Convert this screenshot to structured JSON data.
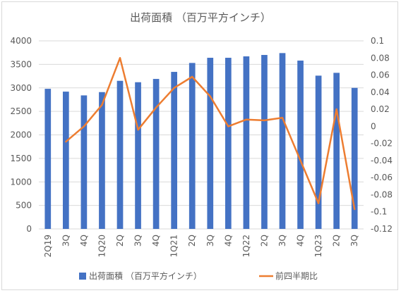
{
  "chart_data": {
    "type": "bar+line",
    "title": "出荷面積 （百万平方インチ）",
    "categories": [
      "2Q19",
      "3Q",
      "4Q",
      "1Q20",
      "2Q",
      "3Q",
      "4Q",
      "1Q21",
      "2Q",
      "3Q",
      "4Q",
      "1Q22",
      "2Q",
      "3Q",
      "4Q",
      "1Q23",
      "2Q",
      "3Q"
    ],
    "series": [
      {
        "name": "出荷面積 （百万平方インチ）",
        "type": "bar",
        "axis": "left",
        "color": "#4472C4",
        "values": [
          2980,
          2920,
          2840,
          2910,
          3150,
          3120,
          3190,
          3340,
          3530,
          3640,
          3640,
          3670,
          3700,
          3740,
          3580,
          3260,
          3320,
          3000
        ]
      },
      {
        "name": "前四半期比",
        "type": "line",
        "axis": "right",
        "color": "#ED7D31",
        "values": [
          null,
          -0.018,
          0.0,
          0.025,
          0.08,
          -0.004,
          0.022,
          0.045,
          0.058,
          0.035,
          0.0,
          0.008,
          0.007,
          0.01,
          -0.04,
          -0.09,
          0.02,
          -0.097
        ]
      }
    ],
    "y_left": {
      "min": 0,
      "max": 4000,
      "step": 500,
      "ticks": [
        "0",
        "500",
        "1000",
        "1500",
        "2000",
        "2500",
        "3000",
        "3500",
        "4000"
      ]
    },
    "y_right": {
      "min": -0.12,
      "max": 0.1,
      "step": 0.02,
      "ticks": [
        "-0.12",
        "-0.1",
        "-0.08",
        "-0.06",
        "-0.04",
        "-0.02",
        "0",
        "0.02",
        "0.04",
        "0.06",
        "0.08",
        "0.1"
      ]
    },
    "grid": true,
    "legend_position": "bottom"
  }
}
